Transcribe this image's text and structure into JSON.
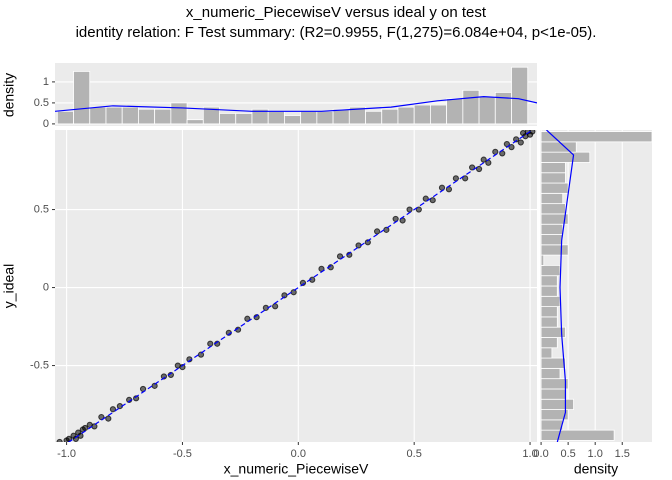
{
  "chart_data": [
    {
      "type": "scatter",
      "title": "x_numeric_PiecewiseV versus ideal y on test",
      "subtitle": "identity relation: F Test summary: (R2=0.9955, F(1,275)=6.084e+04, p<1e-05).",
      "xlabel": "x_numeric_PiecewiseV",
      "ylabel": "y_ideal",
      "xlim": [
        -1.05,
        1.03
      ],
      "ylim": [
        -0.99,
        1.01
      ],
      "xticks": [
        {
          "value": -1,
          "label": "-1.0"
        },
        -0.5,
        {
          "value": 0,
          "label": "0.0"
        },
        0.5,
        {
          "value": 1,
          "label": "1.0"
        }
      ],
      "yticks": [
        -0.5,
        0,
        0.5
      ],
      "grid": true,
      "color": "#000000",
      "x": [
        -1.03,
        -1.0,
        -0.99,
        -0.97,
        -0.96,
        -0.95,
        -0.94,
        -0.93,
        -0.92,
        -0.9,
        -0.88,
        -0.85,
        -0.82,
        -0.8,
        -0.77,
        -0.73,
        -0.7,
        -0.67,
        -0.62,
        -0.58,
        -0.55,
        -0.52,
        -0.5,
        -0.47,
        -0.42,
        -0.38,
        -0.35,
        -0.3,
        -0.26,
        -0.22,
        -0.18,
        -0.14,
        -0.1,
        -0.06,
        -0.02,
        0.02,
        0.06,
        0.1,
        0.14,
        0.18,
        0.22,
        0.26,
        0.3,
        0.34,
        0.38,
        0.42,
        0.45,
        0.48,
        0.52,
        0.55,
        0.58,
        0.62,
        0.65,
        0.68,
        0.72,
        0.75,
        0.78,
        0.8,
        0.82,
        0.85,
        0.88,
        0.9,
        0.92,
        0.94,
        0.96,
        0.98,
        0.99,
        1.0,
        1.01,
        0.97
      ],
      "y": [
        -0.99,
        -0.98,
        -0.97,
        -0.95,
        -0.97,
        -0.93,
        -0.95,
        -0.91,
        -0.9,
        -0.88,
        -0.89,
        -0.83,
        -0.84,
        -0.78,
        -0.76,
        -0.72,
        -0.71,
        -0.65,
        -0.63,
        -0.57,
        -0.56,
        -0.5,
        -0.51,
        -0.46,
        -0.43,
        -0.36,
        -0.36,
        -0.29,
        -0.27,
        -0.2,
        -0.19,
        -0.13,
        -0.12,
        -0.05,
        -0.03,
        0.03,
        0.05,
        0.12,
        0.13,
        0.2,
        0.21,
        0.27,
        0.29,
        0.36,
        0.37,
        0.44,
        0.43,
        0.5,
        0.5,
        0.57,
        0.56,
        0.64,
        0.63,
        0.7,
        0.7,
        0.77,
        0.76,
        0.82,
        0.8,
        0.87,
        0.86,
        0.92,
        0.9,
        0.95,
        0.93,
        0.97,
        1.0,
        0.98,
        1.0,
        0.99
      ],
      "reference_line": {
        "x": [
          -1.05,
          1.03
        ],
        "y": [
          -1.05,
          1.03
        ],
        "color": "#0000ff"
      }
    },
    {
      "type": "histogram",
      "orientation": "vertical",
      "ylabel": "density",
      "xlim": [
        -1.05,
        1.03
      ],
      "ylim": [
        -0.05,
        1.45
      ],
      "yticks": [
        0,
        0.5,
        1
      ],
      "grid": true,
      "color": "#b3b3b3",
      "bins": [
        -1.04,
        -0.97,
        -0.9,
        -0.83,
        -0.76,
        -0.69,
        -0.62,
        -0.55,
        -0.48,
        -0.41,
        -0.34,
        -0.27,
        -0.2,
        -0.13,
        -0.06,
        0.01,
        0.08,
        0.15,
        0.22,
        0.29,
        0.36,
        0.43,
        0.5,
        0.57,
        0.64,
        0.71,
        0.78,
        0.85,
        0.92,
        0.99
      ],
      "values": [
        0.3,
        1.25,
        0.4,
        0.4,
        0.4,
        0.35,
        0.35,
        0.5,
        0.1,
        0.4,
        0.25,
        0.25,
        0.35,
        0.3,
        0.2,
        0.3,
        0.3,
        0.35,
        0.4,
        0.3,
        0.35,
        0.4,
        0.45,
        0.45,
        0.6,
        0.8,
        0.65,
        0.75,
        1.35
      ],
      "density_curve": {
        "color": "#0000ff",
        "x": [
          -1.05,
          -0.8,
          -0.5,
          -0.2,
          0.1,
          0.4,
          0.6,
          0.8,
          0.95,
          1.03
        ],
        "y": [
          0.3,
          0.43,
          0.38,
          0.3,
          0.3,
          0.4,
          0.55,
          0.65,
          0.6,
          0.5
        ]
      }
    },
    {
      "type": "histogram",
      "orientation": "horizontal",
      "xlabel": "density",
      "xlim": [
        -0.02,
        2.05
      ],
      "ylim": [
        -0.99,
        1.01
      ],
      "xticks": [
        {
          "value": 0,
          "label": "0.0"
        },
        0.5,
        {
          "value": 1,
          "label": "1.0"
        },
        1.5
      ],
      "grid": true,
      "color": "#b3b3b3",
      "bins": [
        -0.98,
        -0.914,
        -0.848,
        -0.782,
        -0.716,
        -0.65,
        -0.584,
        -0.518,
        -0.452,
        -0.386,
        -0.32,
        -0.254,
        -0.188,
        -0.122,
        -0.056,
        0.01,
        0.076,
        0.142,
        0.208,
        0.274,
        0.34,
        0.406,
        0.472,
        0.538,
        0.604,
        0.67,
        0.736,
        0.802,
        0.868,
        0.934,
        1.0
      ],
      "values": [
        1.35,
        0.4,
        0.5,
        0.6,
        0.45,
        0.5,
        0.35,
        0.45,
        0.2,
        0.3,
        0.45,
        0.3,
        0.3,
        0.35,
        0.3,
        0.3,
        0.35,
        0.05,
        0.5,
        0.4,
        0.4,
        0.5,
        0.45,
        0.4,
        0.5,
        0.45,
        0.45,
        0.9,
        0.65,
        2.05
      ],
      "density_curve": {
        "color": "#0000ff",
        "x": [
          0.3,
          0.45,
          0.45,
          0.38,
          0.35,
          0.38,
          0.5,
          0.6,
          0.1
        ],
        "y": [
          -0.99,
          -0.8,
          -0.6,
          -0.3,
          0,
          0.3,
          0.6,
          0.85,
          1.01
        ]
      }
    }
  ]
}
